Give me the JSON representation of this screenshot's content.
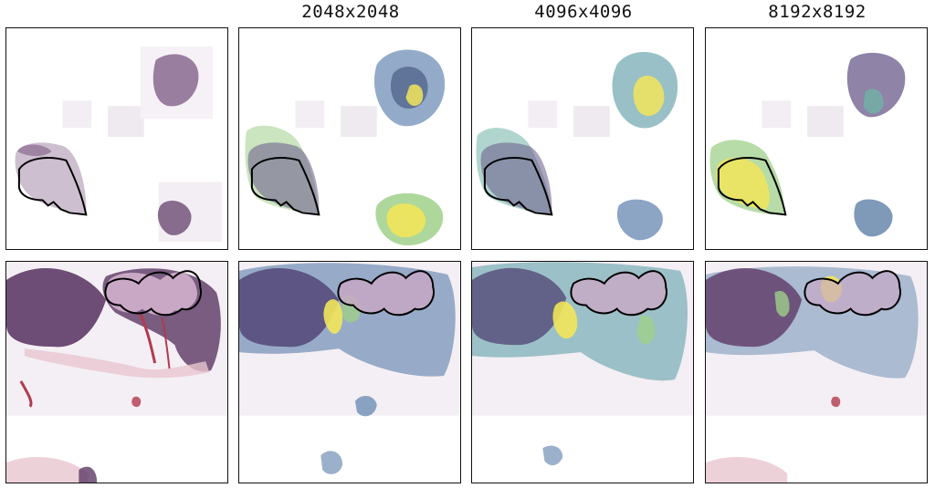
{
  "figure": {
    "column_headers": [
      "",
      "2048x2048",
      "4096x4096",
      "8192x8192"
    ]
  },
  "colors": {
    "tissue_dark": "#5e3a67",
    "tissue_mid": "#8a6a8f",
    "tissue_light": "#cdbfcf",
    "stroma_pink": "#c97a8c",
    "blood_red": "#b23a4c",
    "heat_blue": "#5f7fa8",
    "heat_teal": "#6fb3a6",
    "heat_green": "#9fd08a",
    "heat_yellow": "#f2e55a",
    "outline": "#000000"
  }
}
